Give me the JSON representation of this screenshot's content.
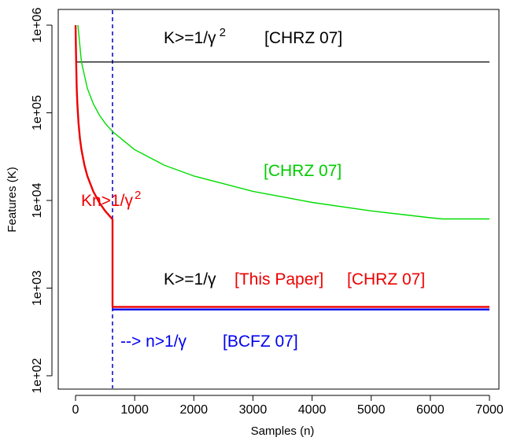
{
  "chart_data": {
    "type": "line",
    "xlabel": "Samples (n)",
    "ylabel": "Features (K)",
    "xlim": [
      0,
      7000
    ],
    "ylim": [
      100,
      1000000
    ],
    "y_scale": "log",
    "grid": false,
    "x_ticks": [
      0,
      1000,
      2000,
      3000,
      4000,
      5000,
      6000,
      7000
    ],
    "x_tick_labels": [
      "0",
      "1000",
      "2000",
      "3000",
      "4000",
      "5000",
      "6000",
      "7000"
    ],
    "y_ticks": [
      100,
      1000,
      10000,
      100000,
      1000000
    ],
    "y_tick_labels": [
      "1e+02",
      "1e+03",
      "1e+04",
      "1e+05",
      "1e+06"
    ],
    "series": [
      {
        "color": "#000000",
        "x": [
          0,
          7000
        ],
        "y": [
          380000,
          380000
        ]
      },
      {
        "color": "#00dd00",
        "x": [
          40,
          100,
          200,
          300,
          400,
          500,
          625,
          1000,
          1500,
          2000,
          3000,
          4000,
          5000,
          6000,
          6200,
          7000
        ],
        "y": [
          1000000,
          380000,
          190000,
          127000,
          95000,
          76000,
          61000,
          38000,
          25300,
          19000,
          12700,
          9500,
          7600,
          6350,
          6150,
          6150
        ]
      },
      {
        "color": "#ee0000",
        "x": [
          0,
          10,
          20,
          30,
          50,
          75,
          100,
          150,
          200,
          300,
          400,
          500,
          625,
          7000
        ],
        "y": [
          1000000,
          380000,
          190000,
          127000,
          76000,
          50700,
          38000,
          25300,
          19000,
          12700,
          9500,
          7600,
          6080,
          610
        ]
      },
      {
        "color": "#0000ee",
        "x": [
          625,
          7000
        ],
        "y": [
          570,
          570
        ]
      }
    ],
    "vlines": [
      {
        "x": 625,
        "color": "#0000cc",
        "style": "dashed"
      }
    ],
    "annotations": [
      {
        "text": "K>=1/γ",
        "sup": "2",
        "color": "#000000"
      },
      {
        "text": "[CHRZ 07]",
        "color": "#000000"
      },
      {
        "text": "[CHRZ 07]",
        "color": "#00cc00"
      },
      {
        "text": "Kn>1/γ",
        "sup": "2",
        "color": "#ee0000"
      },
      {
        "text": "K>=1/γ",
        "color": "#000000"
      },
      {
        "text": "[This Paper]",
        "color": "#ee0000"
      },
      {
        "text": "[CHRZ 07]",
        "color": "#ee0000"
      },
      {
        "text": "--> n>1/γ",
        "color": "#0000ee"
      },
      {
        "text": "[BCFZ 07]",
        "color": "#0000ee"
      }
    ]
  }
}
